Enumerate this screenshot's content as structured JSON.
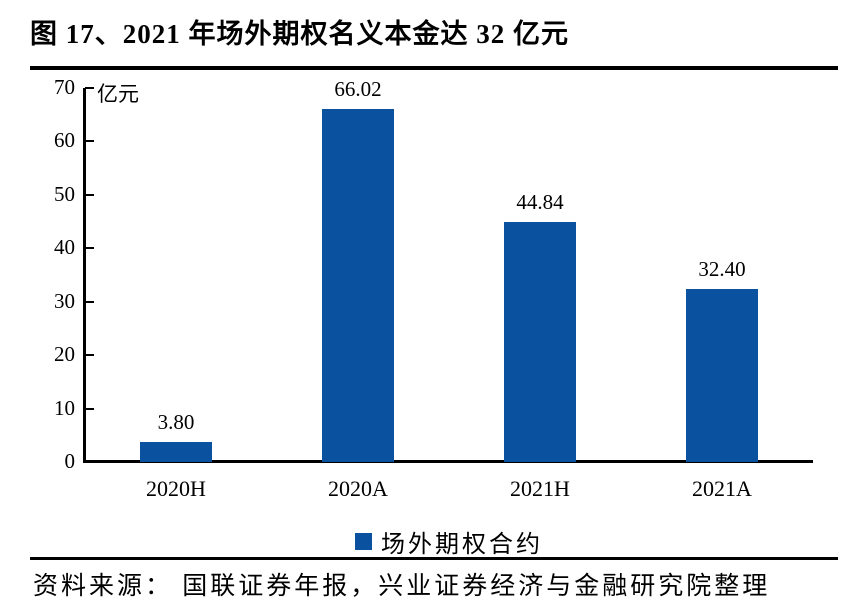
{
  "figure": {
    "title": "图 17、2021 年场外期权名义本金达 32 亿元"
  },
  "legend": {
    "label": "场外期权合约"
  },
  "source_note": "资料来源： 国联证券年报，兴业证券经济与金融研究院整理",
  "colors": {
    "bar": "#0A51A0",
    "axis": "#000000",
    "text": "#000000"
  },
  "chart_data": {
    "type": "bar",
    "title": "2021 年场外期权名义本金达 32 亿元",
    "categories": [
      "2020H",
      "2020A",
      "2021H",
      "2021A"
    ],
    "values": [
      3.8,
      66.02,
      44.84,
      32.4
    ],
    "value_labels": [
      "3.80",
      "66.02",
      "44.84",
      "32.40"
    ],
    "series_name": "场外期权合约",
    "xlabel": "",
    "ylabel": "亿元",
    "ylim": [
      0,
      70
    ],
    "yticks": [
      0,
      10,
      20,
      30,
      40,
      50,
      60,
      70
    ],
    "grid": false,
    "legend_position": "bottom"
  }
}
